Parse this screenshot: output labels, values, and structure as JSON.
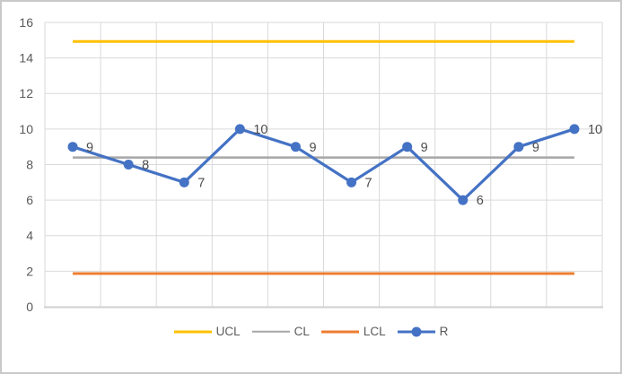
{
  "chart": {
    "background": "#FFFFFF",
    "frame_border_color": "#C9C9C9",
    "plot_style": {
      "gridline_color": "#D9D9D9",
      "axis_line_color": "#CFCFCF",
      "tick_label_color": "#595959",
      "data_label_color": "#4d4d4d"
    }
  },
  "chart_data": {
    "type": "line",
    "title": "",
    "x": [
      1,
      2,
      3,
      4,
      5,
      6,
      7,
      8,
      9,
      10
    ],
    "x_axis_labels_visible": false,
    "ylim": [
      0,
      16
    ],
    "yticks": [
      0,
      2,
      4,
      6,
      8,
      10,
      12,
      14,
      16
    ],
    "ytick_labels": [
      "0",
      "2",
      "4",
      "6",
      "8",
      "10",
      "12",
      "14",
      "16"
    ],
    "grid": true,
    "legend_position": "bottom",
    "series": [
      {
        "name": "UCL",
        "color": "#FFC000",
        "line_width": 3,
        "marker": false,
        "values": [
          14.93,
          14.93,
          14.93,
          14.93,
          14.93,
          14.93,
          14.93,
          14.93,
          14.93,
          14.93
        ]
      },
      {
        "name": "CL",
        "color": "#A6A6A6",
        "line_width": 2.5,
        "marker": false,
        "values": [
          8.4,
          8.4,
          8.4,
          8.4,
          8.4,
          8.4,
          8.4,
          8.4,
          8.4,
          8.4
        ]
      },
      {
        "name": "LCL",
        "color": "#ED7D31",
        "line_width": 3,
        "marker": false,
        "values": [
          1.87,
          1.87,
          1.87,
          1.87,
          1.87,
          1.87,
          1.87,
          1.87,
          1.87,
          1.87
        ]
      },
      {
        "name": "R",
        "color": "#4472C4",
        "line_width": 3.25,
        "marker": true,
        "marker_radius": 5.5,
        "values": [
          9,
          8,
          7,
          10,
          9,
          7,
          9,
          6,
          9,
          10
        ],
        "data_labels": [
          "9",
          "8",
          "7",
          "10",
          "9",
          "7",
          "9",
          "6",
          "9",
          "10"
        ]
      }
    ]
  },
  "legend": {
    "items": [
      "UCL",
      "CL",
      "LCL",
      "R"
    ]
  }
}
